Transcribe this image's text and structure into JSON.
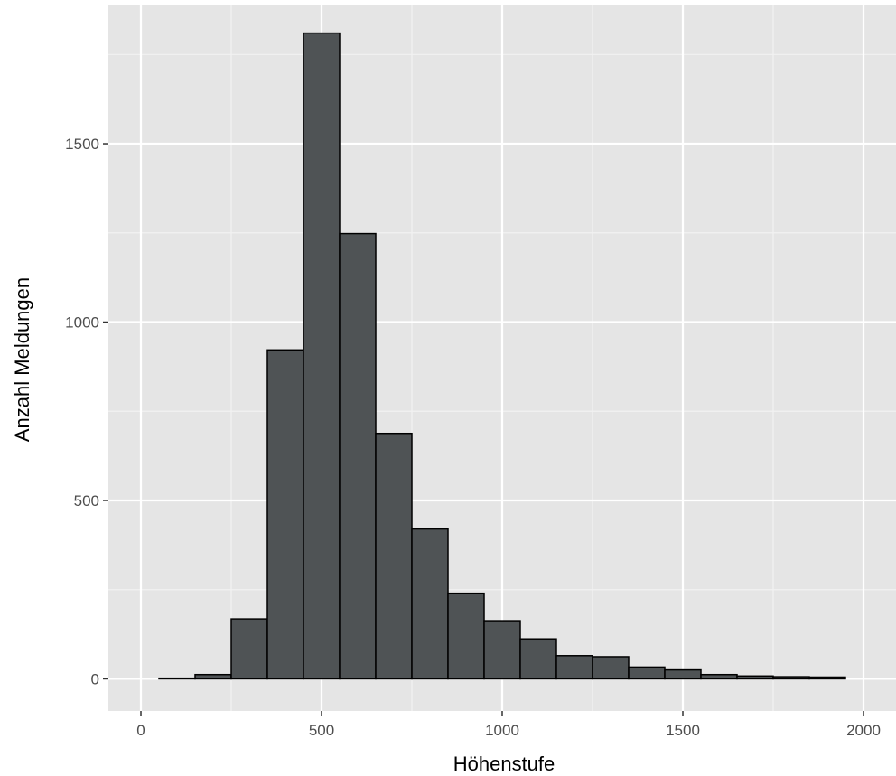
{
  "chart_data": {
    "type": "bar",
    "subtype": "histogram",
    "title": "",
    "xlabel": "Höhenstufe",
    "ylabel": "Anzahl Meldungen",
    "xlim": [
      -90,
      2090
    ],
    "ylim": [
      -90,
      1890
    ],
    "x_ticks": [
      0,
      500,
      1000,
      1500,
      2000
    ],
    "y_ticks": [
      0,
      500,
      1000,
      1500
    ],
    "grid": true,
    "legend": "none",
    "bin_width": 100,
    "bins": [
      {
        "start": 50,
        "end": 150,
        "count": 2
      },
      {
        "start": 150,
        "end": 250,
        "count": 12
      },
      {
        "start": 250,
        "end": 350,
        "count": 168
      },
      {
        "start": 350,
        "end": 450,
        "count": 922
      },
      {
        "start": 450,
        "end": 550,
        "count": 1810
      },
      {
        "start": 550,
        "end": 650,
        "count": 1248
      },
      {
        "start": 650,
        "end": 750,
        "count": 688
      },
      {
        "start": 750,
        "end": 850,
        "count": 420
      },
      {
        "start": 850,
        "end": 950,
        "count": 240
      },
      {
        "start": 950,
        "end": 1050,
        "count": 163
      },
      {
        "start": 1050,
        "end": 1150,
        "count": 112
      },
      {
        "start": 1150,
        "end": 1250,
        "count": 65
      },
      {
        "start": 1250,
        "end": 1350,
        "count": 62
      },
      {
        "start": 1350,
        "end": 1450,
        "count": 33
      },
      {
        "start": 1450,
        "end": 1550,
        "count": 25
      },
      {
        "start": 1550,
        "end": 1650,
        "count": 12
      },
      {
        "start": 1650,
        "end": 1750,
        "count": 8
      },
      {
        "start": 1750,
        "end": 1850,
        "count": 6
      },
      {
        "start": 1850,
        "end": 1950,
        "count": 5
      }
    ],
    "colors": {
      "panel_background": "#e5e5e5",
      "grid_major": "#ffffff",
      "grid_minor": "#f2f2f2",
      "bar_fill": "#4f5355",
      "bar_outline": "#000000",
      "tick_label": "#4d4d4d",
      "tick_mark": "#333333"
    }
  }
}
